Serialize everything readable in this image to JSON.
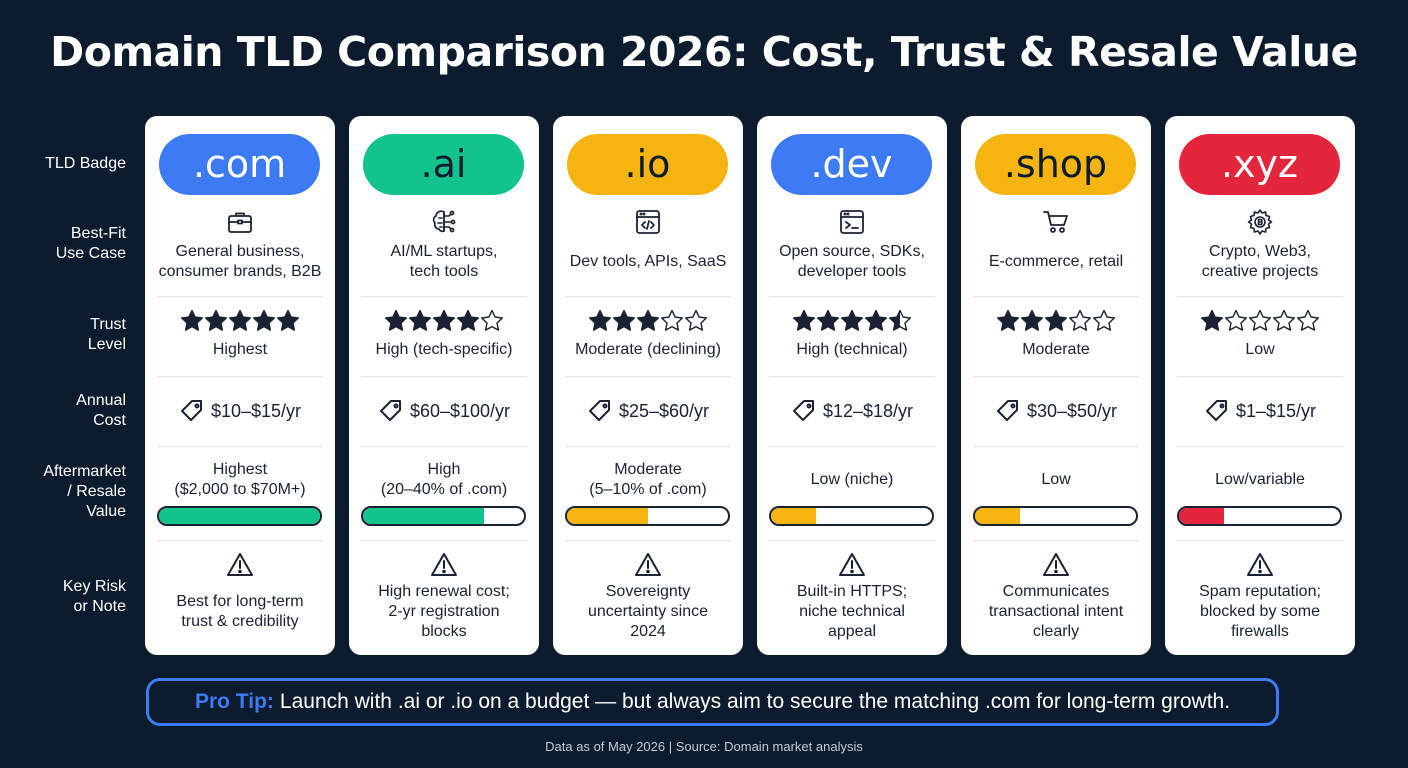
{
  "title": "Domain TLD Comparison 2026: Cost, Trust & Resale Value",
  "row_labels": {
    "badge": "TLD Badge",
    "use_case": "Best-Fit\nUse Case",
    "trust": "Trust\nLevel",
    "cost": "Annual\nCost",
    "resale": "Aftermarket\n/ Resale\nValue",
    "risk": "Key Risk\nor Note"
  },
  "tlds": [
    {
      "name": ".com",
      "badge_color": "#3d7bf5",
      "badge_text_color": "#ffffff",
      "use_case_icon": "briefcase-icon",
      "use_case": "General business,\nconsumer brands, B2B",
      "stars": 5,
      "trust": "Highest",
      "cost": "$10–$15/yr",
      "resale": "Highest\n($2,000 to $70M+)",
      "resale_level": 1.0,
      "bar_color": "#12c48b",
      "risk": "Best for long-term\ntrust & credibility"
    },
    {
      "name": ".ai",
      "badge_color": "#12c48b",
      "badge_text_color": "#0d1b2e",
      "use_case_icon": "brain-circuit-icon",
      "use_case": "AI/ML startups,\ntech tools",
      "stars": 4,
      "trust": "High (tech-specific)",
      "cost": "$60–$100/yr",
      "resale": "High\n(20–40% of .com)",
      "resale_level": 0.75,
      "bar_color": "#12c48b",
      "risk": "High renewal cost;\n2-yr registration\nblocks"
    },
    {
      "name": ".io",
      "badge_color": "#f5b40f",
      "badge_text_color": "#0d1b2e",
      "use_case_icon": "code-window-icon",
      "use_case": "Dev tools, APIs, SaaS",
      "stars": 3,
      "trust": "Moderate (declining)",
      "cost": "$25–$60/yr",
      "resale": "Moderate\n(5–10% of .com)",
      "resale_level": 0.5,
      "bar_color": "#f5b40f",
      "risk": "Sovereignty\nuncertainty since\n2024"
    },
    {
      "name": ".dev",
      "badge_color": "#3d7bf5",
      "badge_text_color": "#ffffff",
      "use_case_icon": "terminal-icon",
      "use_case": "Open source, SDKs,\ndeveloper tools",
      "stars": 4.5,
      "trust": "High (technical)",
      "cost": "$12–$18/yr",
      "resale": "Low (niche)",
      "resale_level": 0.28,
      "bar_color": "#f5b40f",
      "risk": "Built-in HTTPS;\nniche technical\nappeal"
    },
    {
      "name": ".shop",
      "badge_color": "#f5b40f",
      "badge_text_color": "#0d1b2e",
      "use_case_icon": "shopping-cart-icon",
      "use_case": "E-commerce, retail",
      "stars": 3,
      "trust": "Moderate",
      "cost": "$30–$50/yr",
      "resale": "Low",
      "resale_level": 0.28,
      "bar_color": "#f5b40f",
      "risk": "Communicates\ntransactional intent\nclearly"
    },
    {
      "name": ".xyz",
      "badge_color": "#e3263b",
      "badge_text_color": "#ffffff",
      "use_case_icon": "crypto-gear-icon",
      "use_case": "Crypto, Web3,\ncreative projects",
      "stars": 1,
      "trust": "Low",
      "cost": "$1–$15/yr",
      "resale": "Low/variable",
      "resale_level": 0.28,
      "bar_color": "#e3263b",
      "risk": "Spam reputation;\nblocked by some\nfirewalls"
    }
  ],
  "pro_tip": {
    "lead": "Pro Tip:",
    "text": "Launch with .ai or .io on a budget — but always aim to secure the matching .com for long-term growth."
  },
  "footer": "Data as of May 2026 | Source: Domain market analysis"
}
